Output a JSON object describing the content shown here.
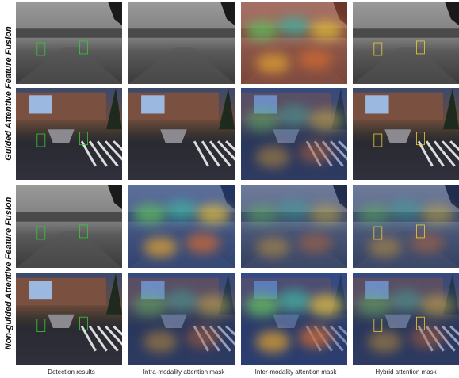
{
  "row_labels": [
    "Guided Attentive Feature Fusion",
    "Non-guided Attentive Feature Fusion"
  ],
  "column_labels": [
    "Detection results",
    "Intra-modality attention mask",
    "Inter-modality attention mask",
    "Hybrid attention mask"
  ]
}
